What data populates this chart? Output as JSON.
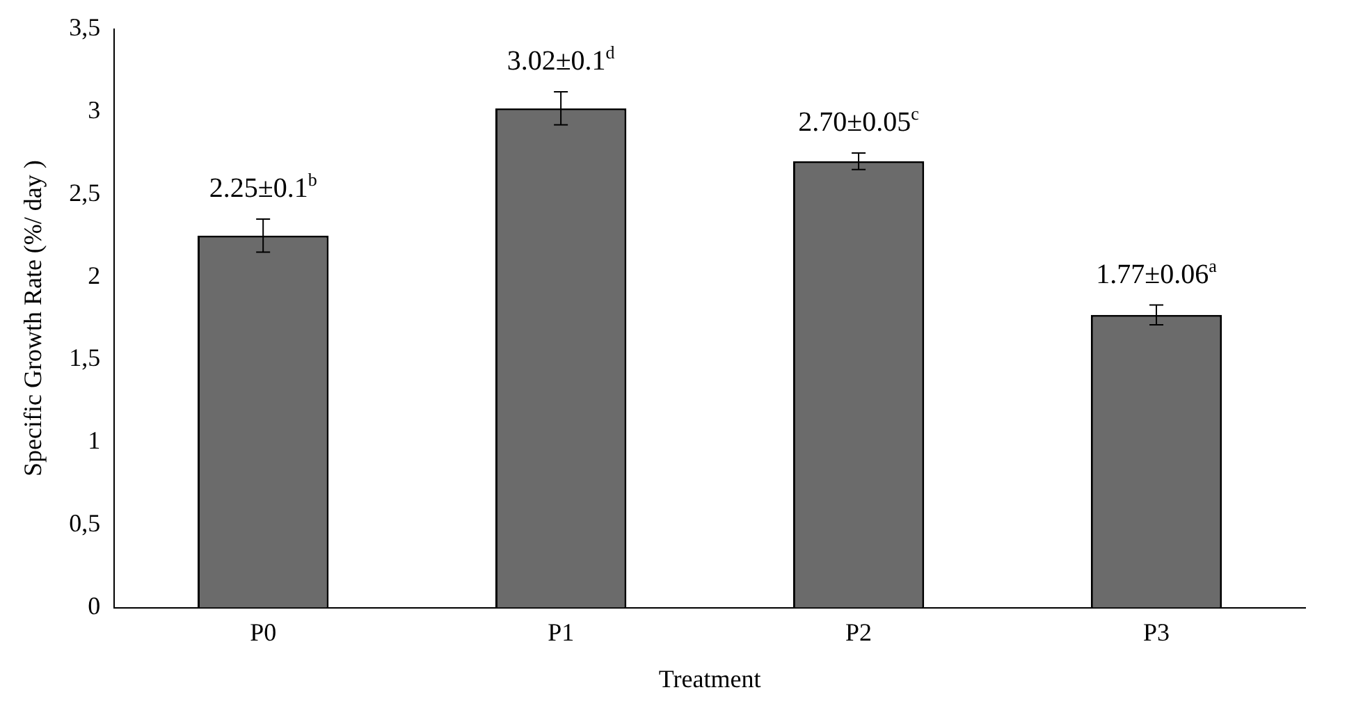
{
  "chart_data": {
    "type": "bar",
    "xlabel": "Treatment",
    "ylabel": "Specific Growth Rate (%/ day )",
    "categories": [
      "P0",
      "P1",
      "P2",
      "P3"
    ],
    "values": [
      2.25,
      3.02,
      2.7,
      1.77
    ],
    "errors": [
      0.1,
      0.1,
      0.05,
      0.06
    ],
    "color": "#6b6b6b",
    "ylim": [
      0,
      3.5
    ],
    "yticks": [
      0,
      {
        "value": 0.5,
        "label": "0,5"
      },
      1,
      {
        "value": 1.5,
        "label": "1,5"
      },
      2,
      {
        "value": 2.5,
        "label": "2,5"
      },
      3,
      {
        "value": 3.5,
        "label": "3,5"
      }
    ],
    "grid": false,
    "legend": false,
    "annotations": [
      {
        "text": "2.25±0.1$^{b}$",
        "x": "P0",
        "y": 2.35
      },
      {
        "text": "3.02±0.1$^{d}$",
        "x": "P1",
        "y": 3.12
      },
      {
        "text": "2.70±0.05$^{c}$",
        "x": "P2",
        "y": 2.75
      },
      {
        "text": "1.77±0.06$^{a}$",
        "x": "P3",
        "y": 1.83
      }
    ]
  }
}
